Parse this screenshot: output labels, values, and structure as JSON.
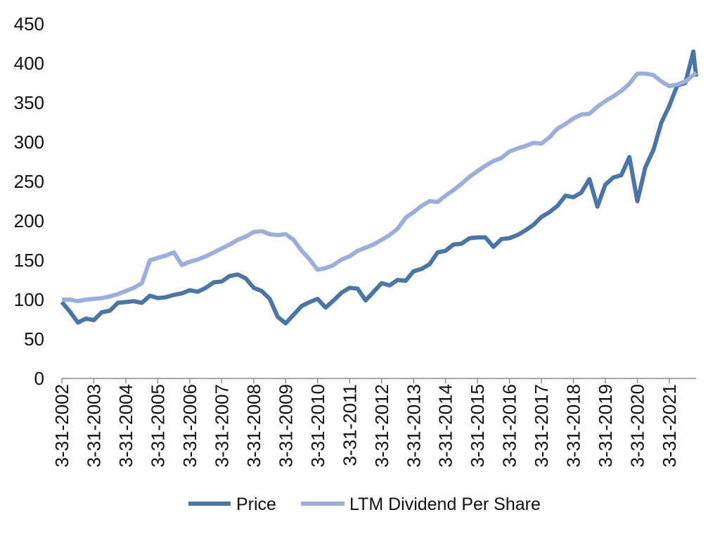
{
  "chart_data": {
    "type": "line",
    "x": [
      "3-31-2002",
      "6-30-2002",
      "9-30-2002",
      "12-31-2002",
      "3-31-2003",
      "6-30-2003",
      "9-30-2003",
      "12-31-2003",
      "3-31-2004",
      "6-30-2004",
      "9-30-2004",
      "12-31-2004",
      "3-31-2005",
      "6-30-2005",
      "9-30-2005",
      "12-31-2005",
      "3-31-2006",
      "6-30-2006",
      "9-30-2006",
      "12-31-2006",
      "3-31-2007",
      "6-30-2007",
      "9-30-2007",
      "12-31-2007",
      "3-31-2008",
      "6-30-2008",
      "9-30-2008",
      "12-31-2008",
      "3-31-2009",
      "6-30-2009",
      "9-30-2009",
      "12-31-2009",
      "3-31-2010",
      "6-30-2010",
      "9-30-2010",
      "12-31-2010",
      "3-31-2011",
      "6-30-2011",
      "9-30-2011",
      "12-31-2011",
      "3-31-2012",
      "6-30-2012",
      "9-30-2012",
      "12-31-2012",
      "3-31-2013",
      "6-30-2013",
      "9-30-2013",
      "12-31-2013",
      "3-31-2014",
      "6-30-2014",
      "9-30-2014",
      "12-31-2014",
      "3-31-2015",
      "6-30-2015",
      "9-30-2015",
      "12-31-2015",
      "3-31-2016",
      "6-30-2016",
      "9-30-2016",
      "12-31-2016",
      "3-31-2017",
      "6-30-2017",
      "9-30-2017",
      "12-31-2017",
      "3-31-2018",
      "6-30-2018",
      "9-30-2018",
      "12-31-2018",
      "3-31-2019",
      "6-30-2019",
      "9-30-2019",
      "12-31-2019",
      "3-31-2020",
      "6-30-2020",
      "9-30-2020",
      "12-31-2020",
      "3-31-2021",
      "6-30-2021",
      "9-30-2021",
      "12-31-2021",
      "1-31-2022"
    ],
    "series": [
      {
        "name": "Price",
        "color": "#4a75a8",
        "values": [
          97,
          85,
          71,
          76,
          74,
          84,
          86,
          96,
          97,
          98,
          96,
          105,
          102,
          103,
          106,
          108,
          112,
          110,
          115,
          122,
          123,
          130,
          132,
          127,
          115,
          111,
          101,
          78,
          70,
          81,
          92,
          97,
          101,
          90,
          99,
          109,
          115,
          114,
          99,
          110,
          121,
          118,
          125,
          124,
          136,
          139,
          145,
          160,
          162,
          170,
          171,
          178,
          179,
          179,
          167,
          177,
          178,
          182,
          188,
          195,
          205,
          211,
          219,
          232,
          230,
          236,
          253,
          218,
          246,
          255,
          258,
          281,
          225,
          268,
          290,
          325,
          346,
          372,
          375,
          415,
          383
        ]
      },
      {
        "name": "LTM Dividend Per Share",
        "color": "#9aafdb",
        "values": [
          100,
          100,
          98,
          100,
          101,
          102,
          104,
          107,
          111,
          115,
          121,
          150,
          153,
          156,
          160,
          144,
          148,
          151,
          155,
          160,
          165,
          170,
          176,
          180,
          186,
          187,
          183,
          182,
          183,
          176,
          162,
          151,
          138,
          140,
          144,
          151,
          155,
          162,
          166,
          170,
          176,
          182,
          190,
          204,
          211,
          219,
          225,
          224,
          232,
          239,
          247,
          256,
          263,
          270,
          276,
          280,
          288,
          292,
          295,
          299,
          298,
          306,
          317,
          323,
          330,
          335,
          336,
          345,
          352,
          358,
          365,
          374,
          387,
          387,
          385,
          377,
          371,
          373,
          377,
          385,
          388
        ]
      }
    ],
    "xticks": [
      "3-31-2002",
      "3-31-2003",
      "3-31-2004",
      "3-31-2005",
      "3-31-2006",
      "3-31-2007",
      "3-31-2008",
      "3-31-2009",
      "3-31-2010",
      "3-31-2011",
      "3-31-2012",
      "3-31-2013",
      "3-31-2014",
      "3-31-2015",
      "3-31-2016",
      "3-31-2017",
      "3-31-2018",
      "3-31-2019",
      "3-31-2020",
      "3-31-2021"
    ],
    "yticks": [
      0,
      50,
      100,
      150,
      200,
      250,
      300,
      350,
      400,
      450
    ],
    "xlim": [
      "3-31-2002",
      "1-31-2022"
    ],
    "ylim": [
      0,
      450
    ],
    "grid": false,
    "legend": "bottom"
  }
}
